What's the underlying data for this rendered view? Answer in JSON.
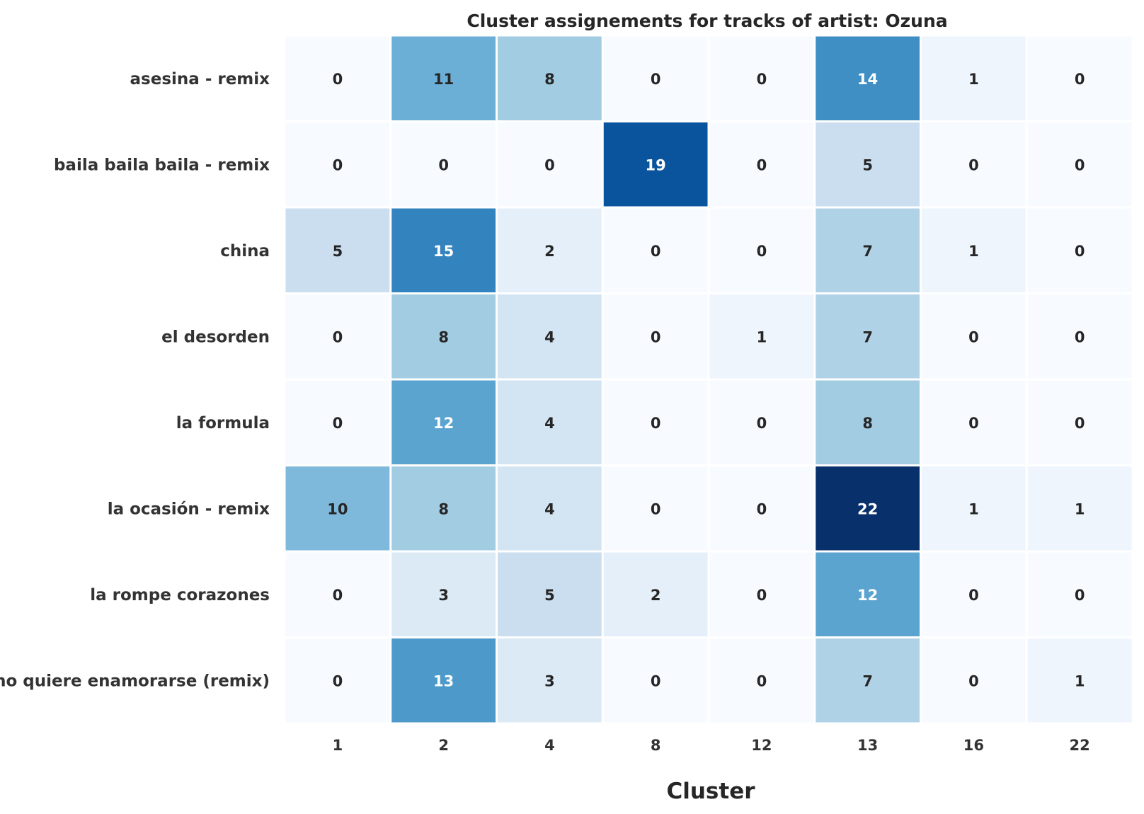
{
  "chart_data": {
    "type": "heatmap",
    "title": "Cluster assignements for tracks of artist: Ozuna",
    "xlabel": "Cluster",
    "ylabel": "",
    "x_categories": [
      "1",
      "2",
      "4",
      "8",
      "12",
      "13",
      "16",
      "22"
    ],
    "y_categories": [
      "asesina - remix",
      "baila baila baila - remix",
      "china",
      "el desorden",
      "la formula",
      "la ocasión - remix",
      "la rompe corazones",
      "no quiere enamorarse (remix)"
    ],
    "values": [
      [
        0,
        11,
        8,
        0,
        0,
        14,
        1,
        0
      ],
      [
        0,
        0,
        0,
        19,
        0,
        5,
        0,
        0
      ],
      [
        5,
        15,
        2,
        0,
        0,
        7,
        1,
        0
      ],
      [
        0,
        8,
        4,
        0,
        1,
        7,
        0,
        0
      ],
      [
        0,
        12,
        4,
        0,
        0,
        8,
        0,
        0
      ],
      [
        10,
        8,
        4,
        0,
        0,
        22,
        1,
        1
      ],
      [
        0,
        3,
        5,
        2,
        0,
        12,
        0,
        0
      ],
      [
        0,
        13,
        3,
        0,
        0,
        7,
        0,
        1
      ]
    ],
    "value_range": [
      0,
      22
    ],
    "colormap": "Blues",
    "colormap_low": "#f7fbff",
    "colormap_high": "#08306b",
    "annotated": true,
    "colorbar": false,
    "grid": false
  }
}
